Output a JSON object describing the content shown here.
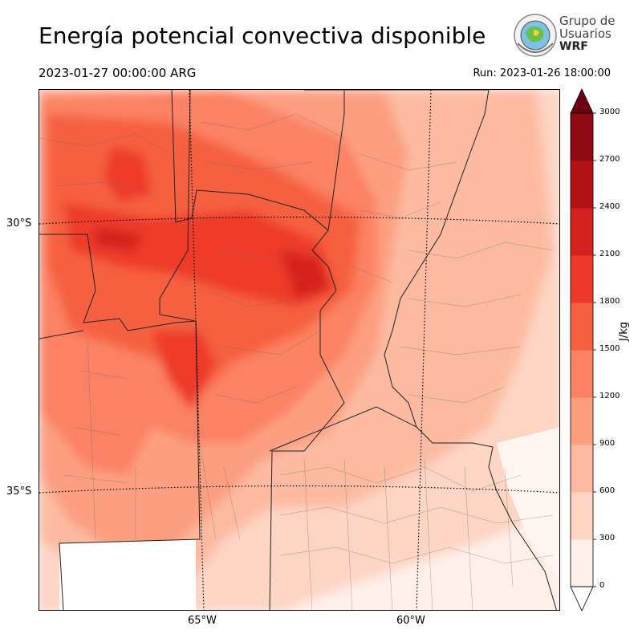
{
  "header": {
    "title": "Energía potencial convectiva disponible",
    "valid_time": "2023-01-27 00:00:00 ARG",
    "run_time": "Run: 2023-01-26 18:00:00"
  },
  "logo": {
    "line1": "Grupo de",
    "line2": "Usuarios",
    "line3": "WRF",
    "icon": "wrf-globe-logo"
  },
  "map": {
    "lat_labels": [
      "30°S",
      "35°S"
    ],
    "lon_labels": [
      "65°W",
      "60°W"
    ]
  },
  "colorbar": {
    "unit": "J/kg",
    "ticks": [
      "0",
      "300",
      "600",
      "900",
      "1200",
      "1500",
      "1800",
      "2100",
      "2400",
      "2700",
      "3000"
    ],
    "colors": [
      "#fff0ea",
      "#fdd5c5",
      "#fcbba1",
      "#fc9f81",
      "#fb8263",
      "#f5603f",
      "#ee3a2b",
      "#d5221e",
      "#b31217",
      "#8f0a13",
      "#6a0010"
    ],
    "extend": "both"
  },
  "chart_data": {
    "type": "heatmap",
    "title": "Energía potencial convectiva disponible",
    "variable_unit": "J/kg",
    "levels": [
      0,
      300,
      600,
      900,
      1200,
      1500,
      1800,
      2100,
      2400,
      2700,
      3000
    ],
    "lat_ticks": [
      "30°S",
      "35°S"
    ],
    "lon_ticks": [
      "65°W",
      "60°W"
    ]
  }
}
